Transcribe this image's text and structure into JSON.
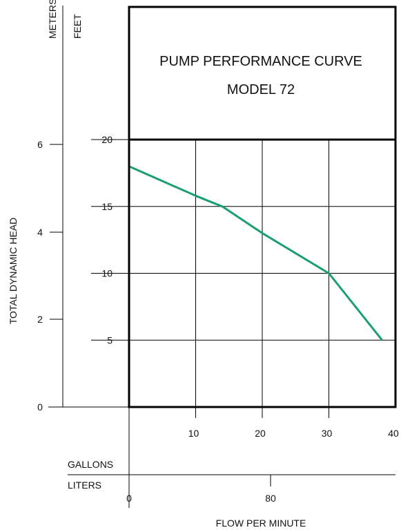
{
  "chart_data": {
    "type": "line",
    "title": "PUMP PERFORMANCE CURVE",
    "subtitle": "MODEL 72",
    "ylabel": "TOTAL DYNAMIC HEAD",
    "xlabel": "FLOW PER MINUTE",
    "y_units_primary": "FEET",
    "y_units_secondary": "METERS",
    "x_units_primary": "GALLONS",
    "x_units_secondary": "LITERS",
    "ylim": [
      0,
      20
    ],
    "xlim": [
      0,
      40
    ],
    "grid": true,
    "yticks_feet": [
      "5",
      "10",
      "15",
      "20"
    ],
    "yticks_meters": [
      "0",
      "2",
      "4",
      "6"
    ],
    "xticks_gallons": [
      "10",
      "20",
      "30",
      "40"
    ],
    "xticks_liters": [
      "0",
      "80"
    ],
    "series": [
      {
        "x": [
          0,
          10,
          14,
          20,
          30,
          38
        ],
        "y": [
          18,
          15.8,
          15,
          13,
          10,
          5
        ]
      }
    ],
    "colors": {
      "curve": "#1a9e6e",
      "frame": "#000000"
    }
  }
}
